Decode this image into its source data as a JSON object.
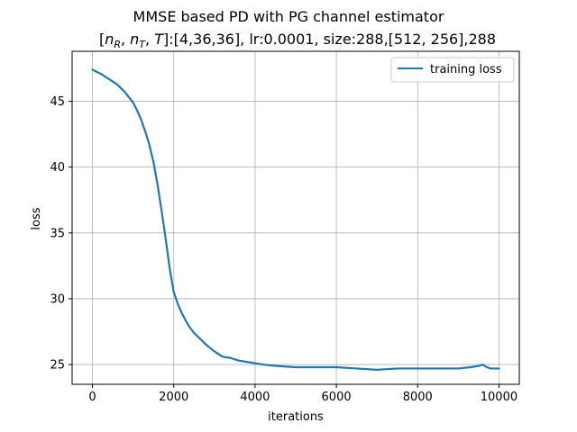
{
  "chart_data": {
    "type": "line",
    "title": "MMSE based PD with PG channel estimator",
    "subtitle": {
      "math_prefix": [
        "n",
        "R",
        "n",
        "T",
        "T"
      ],
      "text": ":[4,36,36], lr:0.0001, size:288,[512, 256],288"
    },
    "xlabel": "iterations",
    "ylabel": "loss",
    "xlim": [
      -500,
      10500
    ],
    "ylim": [
      23.5,
      48.8
    ],
    "xticks": [
      0,
      2000,
      4000,
      6000,
      8000,
      10000
    ],
    "xtick_labels": [
      "0",
      "2000",
      "4000",
      "6000",
      "8000",
      "10000"
    ],
    "yticks": [
      25,
      30,
      35,
      40,
      45
    ],
    "ytick_labels": [
      "25",
      "30",
      "35",
      "40",
      "45"
    ],
    "grid": true,
    "legend_position": "top-right",
    "series": [
      {
        "name": "training loss",
        "color": "#1f77b4",
        "x": [
          0,
          200,
          400,
          600,
          800,
          1000,
          1100,
          1200,
          1300,
          1400,
          1500,
          1600,
          1700,
          1800,
          1900,
          2000,
          2100,
          2200,
          2300,
          2400,
          2500,
          2600,
          2700,
          2800,
          3000,
          3200,
          3400,
          3600,
          3800,
          4000,
          4200,
          4500,
          5000,
          5500,
          6000,
          6500,
          7000,
          7500,
          8000,
          8500,
          9000,
          9300,
          9500,
          9600,
          9700,
          9800,
          10000
        ],
        "y": [
          47.4,
          47.1,
          46.7,
          46.3,
          45.7,
          44.9,
          44.3,
          43.6,
          42.7,
          41.7,
          40.4,
          38.7,
          36.7,
          34.6,
          32.3,
          30.5,
          29.6,
          28.9,
          28.3,
          27.8,
          27.4,
          27.1,
          26.8,
          26.5,
          26.0,
          25.6,
          25.5,
          25.3,
          25.2,
          25.1,
          25.0,
          24.9,
          24.8,
          24.8,
          24.8,
          24.7,
          24.6,
          24.7,
          24.7,
          24.7,
          24.7,
          24.8,
          24.9,
          25.0,
          24.8,
          24.7,
          24.7
        ]
      }
    ]
  }
}
